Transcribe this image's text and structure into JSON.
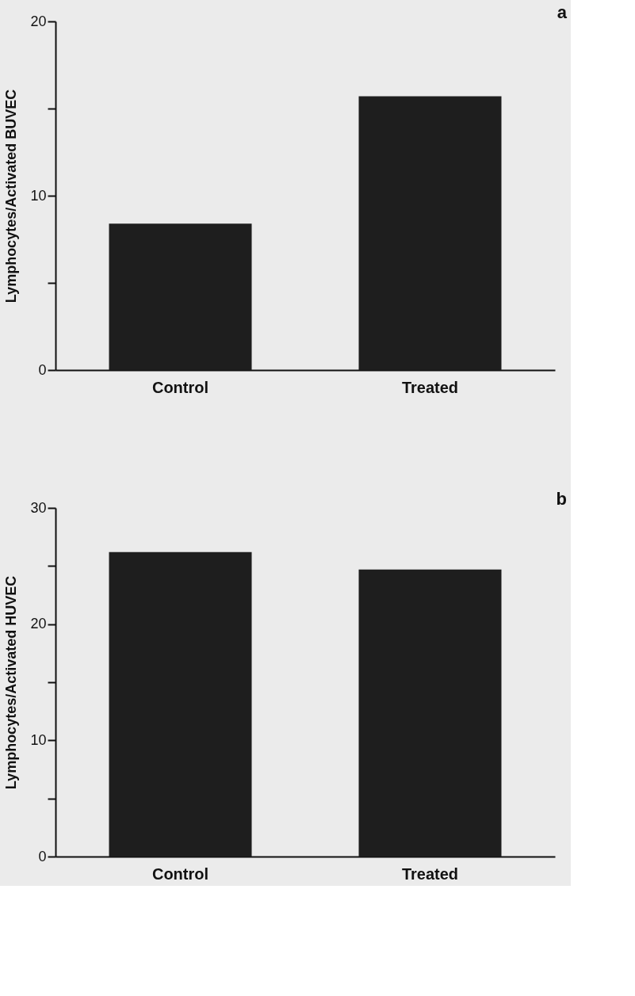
{
  "chart_data": [
    {
      "type": "bar",
      "title": "a",
      "ylabel": "Lymphocytes/Activated  BUVEC",
      "categories": [
        "Control",
        "Treated"
      ],
      "values": [
        8.4,
        15.7
      ],
      "color": "#1e1e1e",
      "ylim": [
        0,
        20
      ],
      "yticks": [
        0,
        {
          "value": 5,
          "label": null
        },
        10,
        {
          "value": 15,
          "label": null
        },
        20
      ],
      "grid": false
    },
    {
      "type": "bar",
      "title": "b",
      "ylabel": "Lymphocytes/Activated  HUVEC",
      "categories": [
        "Control",
        "Treated"
      ],
      "values": [
        26.2,
        24.7
      ],
      "color": "#1e1e1e",
      "ylim": [
        0,
        30
      ],
      "yticks": [
        0,
        {
          "value": 5,
          "label": null
        },
        10,
        {
          "value": 15,
          "label": null
        },
        20,
        {
          "value": 25,
          "label": null
        },
        30
      ],
      "grid": false
    }
  ]
}
